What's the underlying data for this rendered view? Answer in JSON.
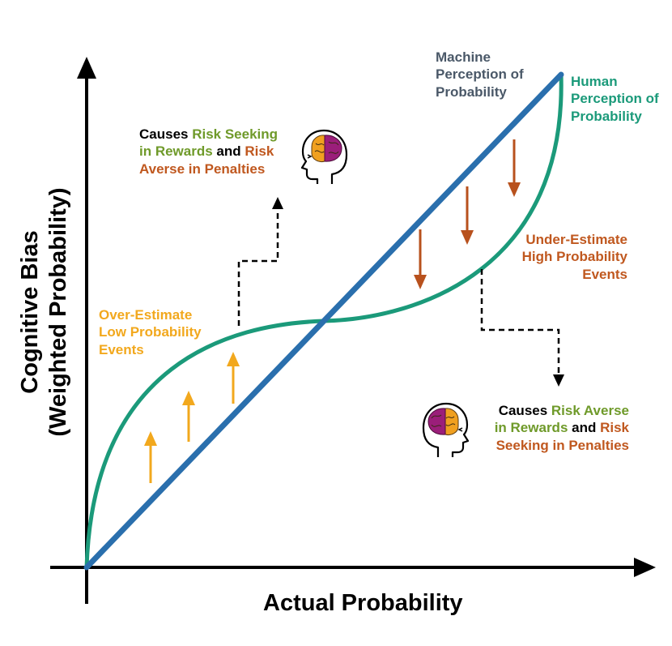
{
  "colors": {
    "axis": "#000000",
    "machine_line": "#2a6fad",
    "human_curve": "#1b9a7a",
    "overestimate": "#f2a81d",
    "underestimate": "#b8511d",
    "rewards_green": "#6f9a2a",
    "penalties_orange": "#c0581f",
    "machine_label": "#4a5868",
    "brain_left": "#f0a020",
    "brain_right": "#9b1e7a"
  },
  "axes": {
    "x_title": "Actual Probability",
    "y_title_line1": "Cognitive Bias",
    "y_title_line2": "(Weighted Probability)"
  },
  "machine_label": {
    "line1": "Machine",
    "line2": "Perception of",
    "line3": "Probability"
  },
  "human_label": {
    "line1": "Human",
    "line2": "Perception of",
    "line3": "Probability"
  },
  "overestimate_label": {
    "line1": "Over-Estimate",
    "line2": "Low Probability",
    "line3": "Events"
  },
  "underestimate_label": {
    "line1": "Under-Estimate",
    "line2": "High Probability",
    "line3": "Events"
  },
  "top_note": {
    "a": "Causes ",
    "b": "Risk Seeking",
    "c": "in Rewards",
    "d": " and ",
    "e": "Risk",
    "f": "Averse in Penalties"
  },
  "bottom_note": {
    "a": "Causes ",
    "b": "Risk Averse",
    "c": "in Rewards",
    "d": " and ",
    "e": "Risk",
    "f": "Seeking in Penalties"
  },
  "icons": {
    "top": "brain-head-icon",
    "bottom": "brain-head-icon"
  }
}
